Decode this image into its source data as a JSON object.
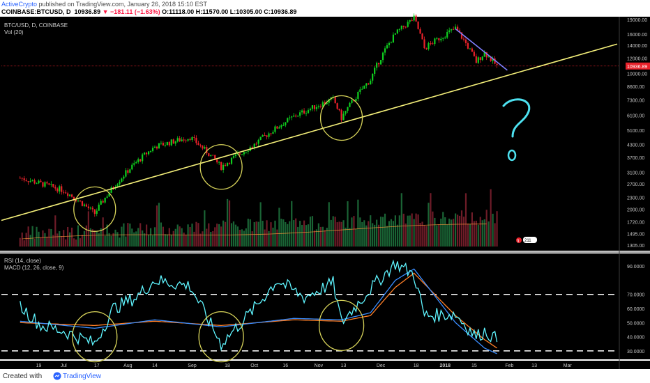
{
  "header": {
    "author": "ActiveCrypto",
    "published_text": "published on TradingView.com, January 26, 2018 15:10 EST",
    "symbol": "COINBASE:BTCUSD, D",
    "last": "10936.89",
    "change": "−181.11 (−1.63%)",
    "open": "O:11118.00",
    "high": "H:11570.00",
    "low": "L:10305.00",
    "close": "C:10936.89"
  },
  "chart_data": {
    "type": "candlestick",
    "title": "BTC/USD, D, COINBASE",
    "volume_label": "Vol (20)",
    "x_ticks": [
      "19",
      "Jul",
      "17",
      "Aug",
      "14",
      "Sep",
      "18",
      "Oct",
      "16",
      "Nov",
      "13",
      "Dec",
      "18",
      "2018",
      "15",
      "Feb",
      "13",
      "Mar"
    ],
    "price_scale": "log",
    "price_ticks": [
      "19000.00",
      "16000.00",
      "14000.00",
      "12000.00",
      "10000.00",
      "8600.00",
      "7300.00",
      "6100.00",
      "5100.00",
      "4300.00",
      "3700.00",
      "3100.00",
      "2700.00",
      "2300.00",
      "2000.00",
      "1720.00",
      "1495.00",
      "1305.00"
    ],
    "last_price_label": "10936.89",
    "volume_badges": [
      "3",
      "211"
    ],
    "price_keypoints": [
      [
        "2017-06-10",
        2900
      ],
      [
        "2017-07-01",
        2500
      ],
      [
        "2017-07-16",
        1900
      ],
      [
        "2017-07-25",
        2600
      ],
      [
        "2017-08-14",
        4200
      ],
      [
        "2017-08-31",
        4700
      ],
      [
        "2017-09-15",
        3300
      ],
      [
        "2017-10-01",
        4300
      ],
      [
        "2017-10-20",
        6000
      ],
      [
        "2017-11-08",
        7400
      ],
      [
        "2017-11-12",
        5900
      ],
      [
        "2017-11-26",
        9300
      ],
      [
        "2017-12-08",
        16000
      ],
      [
        "2017-12-17",
        19300
      ],
      [
        "2017-12-22",
        13500
      ],
      [
        "2018-01-06",
        17100
      ],
      [
        "2018-01-16",
        11500
      ],
      [
        "2018-01-20",
        12800
      ],
      [
        "2018-01-26",
        10937
      ]
    ],
    "trendlines": [
      {
        "name": "support",
        "color": "#f5f07a",
        "from": [
          "2017-06-01",
          1750
        ],
        "to": [
          "2018-03-25",
          14200
        ]
      },
      {
        "name": "resistance",
        "color": "#7f7fff",
        "from": [
          "2018-01-06",
          17000
        ],
        "to": [
          "2018-01-31",
          10400
        ]
      }
    ],
    "circles": [
      {
        "date": "2017-07-16",
        "price": 2000
      },
      {
        "date": "2017-09-15",
        "price": 3300
      },
      {
        "date": "2017-11-12",
        "price": 5900
      }
    ],
    "annotation_text": "?",
    "indicators": {
      "labels": [
        "RSI (14, close)",
        "MACD (12, 26, close, 9)"
      ],
      "ticks": [
        "90.0000",
        "70.0000",
        "60.0000",
        "50.0000",
        "40.0000",
        "30.0000"
      ],
      "rsi_levels": [
        70,
        30
      ],
      "rsi_keypoints": [
        [
          "2017-06-10",
          62
        ],
        [
          "2017-06-20",
          48
        ],
        [
          "2017-07-01",
          44
        ],
        [
          "2017-07-16",
          35
        ],
        [
          "2017-07-25",
          60
        ],
        [
          "2017-08-05",
          68
        ],
        [
          "2017-08-14",
          80
        ],
        [
          "2017-08-31",
          76
        ],
        [
          "2017-09-15",
          35
        ],
        [
          "2017-10-01",
          60
        ],
        [
          "2017-10-12",
          80
        ],
        [
          "2017-10-25",
          68
        ],
        [
          "2017-11-08",
          78
        ],
        [
          "2017-11-12",
          50
        ],
        [
          "2017-11-26",
          74
        ],
        [
          "2017-12-08",
          92
        ],
        [
          "2017-12-17",
          84
        ],
        [
          "2017-12-22",
          55
        ],
        [
          "2018-01-06",
          56
        ],
        [
          "2018-01-16",
          40
        ],
        [
          "2018-01-20",
          44
        ],
        [
          "2018-01-26",
          38
        ]
      ],
      "macd_keypoints": [
        [
          "2017-06-10",
          51
        ],
        [
          "2017-07-16",
          46
        ],
        [
          "2017-08-14",
          52
        ],
        [
          "2017-09-15",
          47
        ],
        [
          "2017-10-20",
          53
        ],
        [
          "2017-11-12",
          52
        ],
        [
          "2017-11-26",
          57
        ],
        [
          "2017-12-08",
          80
        ],
        [
          "2017-12-17",
          88
        ],
        [
          "2018-01-06",
          50
        ],
        [
          "2018-01-20",
          32
        ],
        [
          "2018-01-26",
          28
        ]
      ],
      "signal_keypoints": [
        [
          "2017-06-10",
          50
        ],
        [
          "2017-07-16",
          48
        ],
        [
          "2017-08-14",
          51
        ],
        [
          "2017-09-15",
          48
        ],
        [
          "2017-10-20",
          52
        ],
        [
          "2017-11-12",
          51
        ],
        [
          "2017-11-26",
          55
        ],
        [
          "2017-12-08",
          75
        ],
        [
          "2017-12-17",
          85
        ],
        [
          "2018-01-06",
          55
        ],
        [
          "2018-01-20",
          38
        ],
        [
          "2018-01-26",
          32
        ]
      ],
      "circles": [
        {
          "date": "2017-07-16",
          "value": 40
        },
        {
          "date": "2017-09-15",
          "value": 40
        },
        {
          "date": "2017-11-12",
          "value": 48
        }
      ]
    }
  },
  "footer": {
    "created_with": "Created with",
    "brand": "TradingView"
  },
  "colors": {
    "background": "#000000",
    "up": "#0fce1f",
    "down": "#e8212a",
    "vol_up": "#1d6f3b",
    "vol_down": "#7a1f2c",
    "rsi": "#5ff5ff",
    "macd": "#3a8dff",
    "signal": "#ff7f27",
    "support": "#f5f07a",
    "resistance": "#7f7fff",
    "question": "#4de1f0",
    "circle": "#d8d45a"
  }
}
